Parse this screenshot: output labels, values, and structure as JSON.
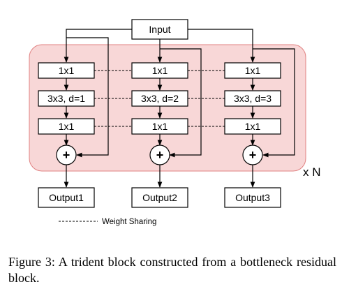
{
  "diagram": {
    "input_label": "Input",
    "branches": [
      {
        "conv_a": "1x1",
        "conv_b": "3x3, d=1",
        "conv_c": "1x1",
        "add_symbol": "+",
        "output": "Output1"
      },
      {
        "conv_a": "1x1",
        "conv_b": "3x3, d=2",
        "conv_c": "1x1",
        "add_symbol": "+",
        "output": "Output2"
      },
      {
        "conv_a": "1x1",
        "conv_b": "3x3, d=3",
        "conv_c": "1x1",
        "add_symbol": "+",
        "output": "Output3"
      }
    ],
    "repeat_label": "x N",
    "legend_label": "Weight Sharing"
  },
  "caption": "Figure 3:  A trident block constructed from a bottleneck residual block.",
  "colors": {
    "block_fill": "#f8d7d7",
    "block_stroke": "#e08080",
    "line": "#000000"
  }
}
